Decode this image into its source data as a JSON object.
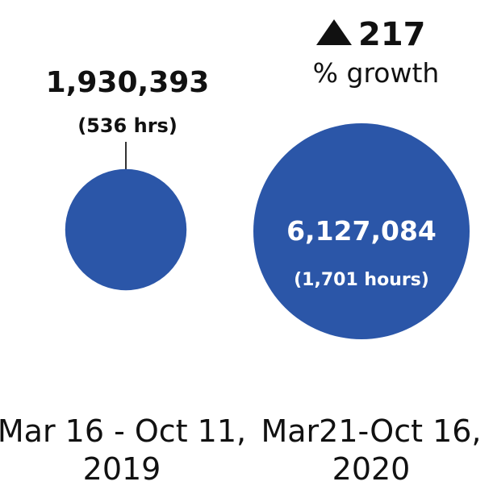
{
  "colors": {
    "bubble": "#2b56a8",
    "text": "#111111",
    "inner_text": "#ffffff",
    "leader": "#333333"
  },
  "growth": {
    "arrow_icon": "triangle-up",
    "value": "217",
    "label": "% growth"
  },
  "chart_data": {
    "type": "bubble",
    "growth_percent": 217,
    "series": [
      {
        "value": 1930393,
        "value_label": "1,930,393",
        "hours": 536,
        "hours_label": "(536 hrs)",
        "period_line1": "Mar 16 - Oct 11,",
        "period_line2": "2019"
      },
      {
        "value": 6127084,
        "value_label": "6,127,084",
        "hours": 1701,
        "hours_label": "(1,701 hours)",
        "period_line1": "Mar21-Oct 16,",
        "period_line2": "2020"
      }
    ]
  }
}
